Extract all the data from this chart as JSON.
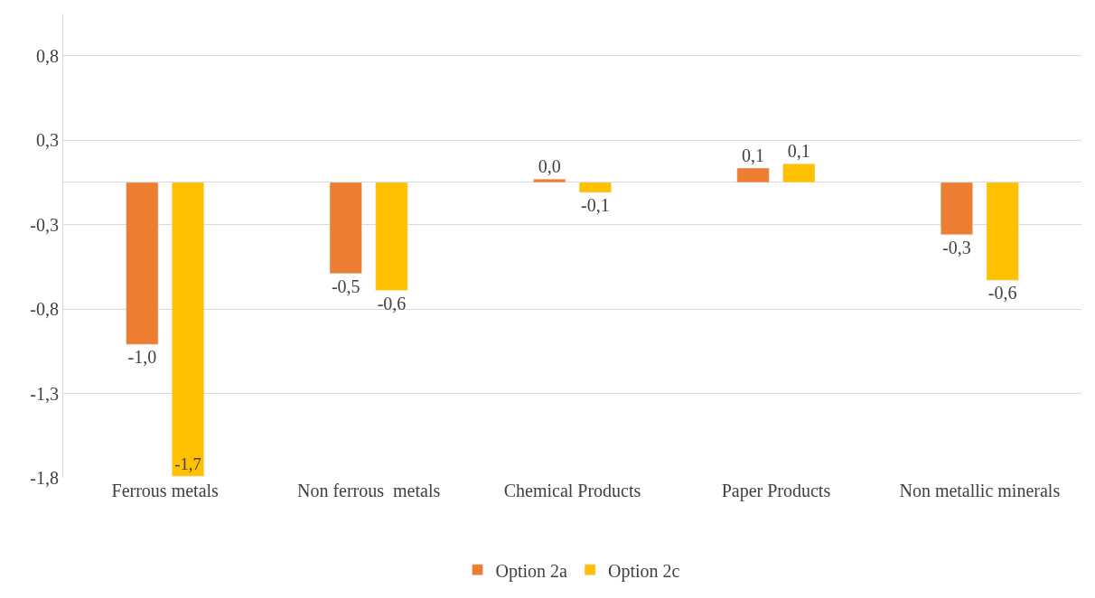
{
  "chart_data": {
    "type": "bar",
    "categories": [
      "Ferrous metals",
      "Non ferrous  metals",
      "Chemical Products",
      "Paper Products",
      "Non metallic minerals"
    ],
    "series": [
      {
        "name": "Option 2a",
        "color": "#ed7d31",
        "values": [
          -0.96,
          -0.54,
          0.02,
          0.085,
          -0.31
        ],
        "value_labels": [
          "-1,0",
          "-0,5",
          "0,0",
          "0,1",
          "-0,3"
        ]
      },
      {
        "name": "Option 2c",
        "color": "#ffc000",
        "values": [
          -1.74,
          -0.64,
          -0.06,
          0.11,
          -0.58
        ],
        "value_labels": [
          "-1,7",
          "-0,6",
          "-0,1",
          "0,1",
          "-0,6"
        ]
      }
    ],
    "ylim": [
      -1.75,
      1.0
    ],
    "yticks": [
      {
        "value": -1.75,
        "label": "-1,8"
      },
      {
        "value": -1.25,
        "label": "-1,3"
      },
      {
        "value": -0.75,
        "label": "-0,8"
      },
      {
        "value": -0.25,
        "label": "-0,3"
      },
      {
        "value": 0.25,
        "label": "0,3"
      },
      {
        "value": 0.75,
        "label": "0,8"
      }
    ],
    "grid": "y",
    "legend": "bottom"
  }
}
